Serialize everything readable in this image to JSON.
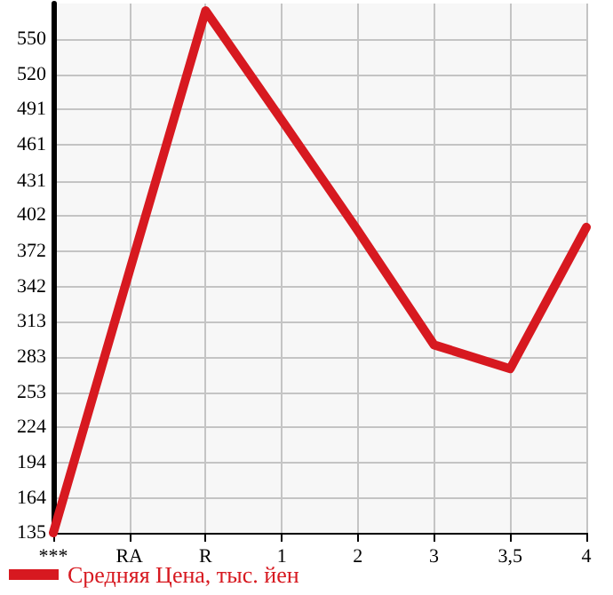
{
  "chart_data": {
    "type": "line",
    "categories": [
      "***",
      "RA",
      "R",
      "1",
      "2",
      "3",
      "3,5",
      "4"
    ],
    "series": [
      {
        "name": "Средняя Цена, тыс. йен",
        "color": "#d71920",
        "values": [
          135,
          355,
          574,
          482,
          389,
          293,
          273,
          392
        ]
      }
    ],
    "ylim": [
      135,
      580
    ],
    "yticks": [
      135,
      164,
      194,
      224,
      253,
      283,
      313,
      342,
      372,
      402,
      431,
      461,
      491,
      520,
      550
    ],
    "grid": true,
    "legend": "bottom left",
    "marker": "none",
    "line_style": "solid"
  }
}
